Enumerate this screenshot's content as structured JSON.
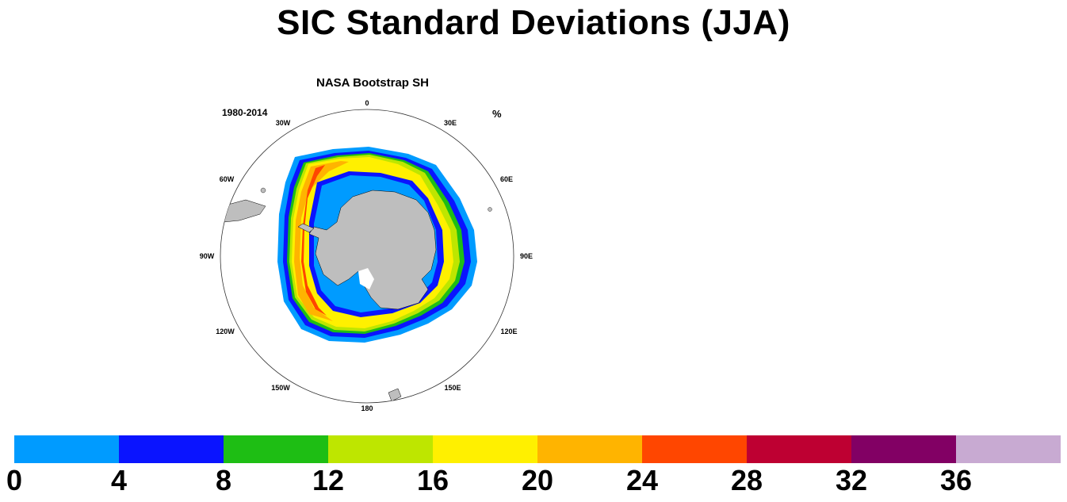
{
  "title": "SIC Standard Deviations (JJA)",
  "panel": {
    "title": "NASA Bootstrap SH",
    "period": "1980-2014",
    "units": "%",
    "lon_labels": [
      "0",
      "30E",
      "60E",
      "90E",
      "120E",
      "150E",
      "180",
      "150W",
      "120W",
      "90W",
      "60W",
      "30W"
    ]
  },
  "colorbar": {
    "colors": [
      "#009bff",
      "#0a14ff",
      "#1ebe14",
      "#bee600",
      "#fff000",
      "#ffb400",
      "#ff4600",
      "#be0032",
      "#820064",
      "#c8aad2"
    ],
    "ticks": [
      "0",
      "4",
      "8",
      "12",
      "16",
      "20",
      "24",
      "28",
      "32",
      "36"
    ]
  },
  "colors": {
    "land": "#bebebe",
    "background": "#ffffff"
  }
}
